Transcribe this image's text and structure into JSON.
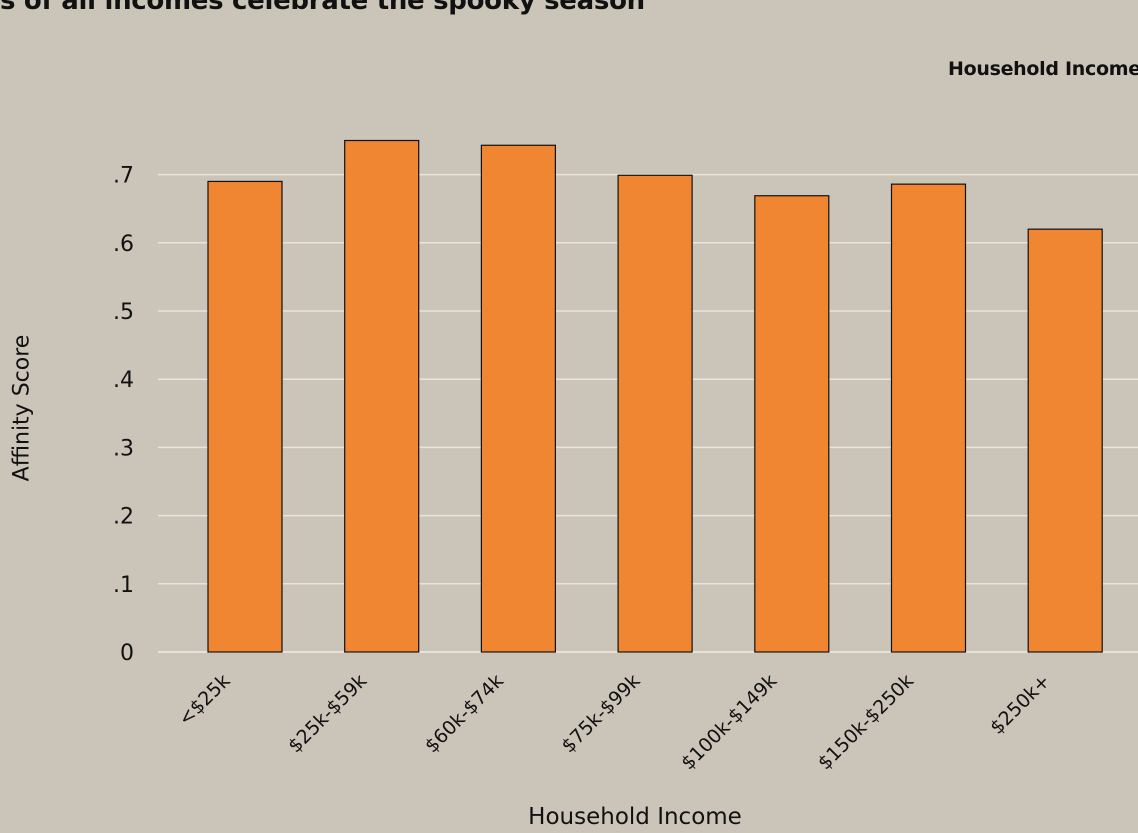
{
  "header": {
    "subtitle": "s of all incomes celebrate the spooky season"
  },
  "legend": {
    "title": "Household Income"
  },
  "colors": {
    "background": "#cbc4b9",
    "bar": "#f08532",
    "bar_outline": "#111111",
    "grid": "#e9e5de"
  },
  "chart_data": {
    "type": "bar",
    "categories": [
      "<$25k",
      "$25k-$59k",
      "$60k-$74k",
      "$75k-$99k",
      "$100k-$149k",
      "$150k-$250k",
      "$250k+"
    ],
    "values": [
      0.69,
      0.75,
      0.743,
      0.699,
      0.669,
      0.686,
      0.62
    ],
    "xlabel": "Household Income",
    "ylabel": "Affinity Score",
    "ylim": [
      0,
      0.75
    ],
    "yticks": [
      0,
      0.1,
      0.2,
      0.3,
      0.4,
      0.5,
      0.6,
      0.7
    ],
    "ytick_labels": [
      "0",
      ".1",
      ".2",
      ".3",
      ".4",
      ".5",
      ".6",
      ".7"
    ],
    "grid": true,
    "legend_position": "top-right"
  }
}
